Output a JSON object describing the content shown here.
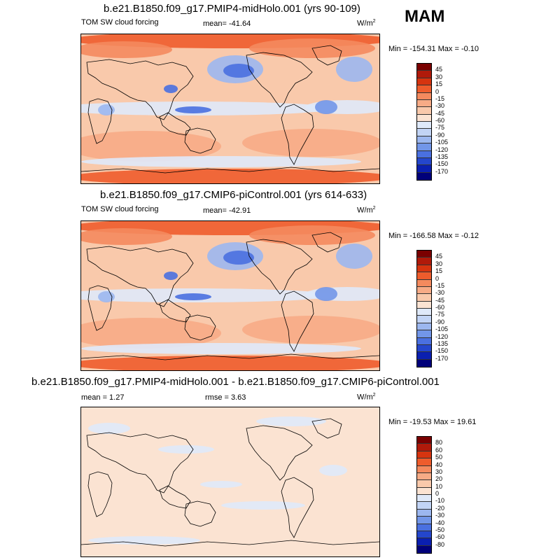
{
  "season": "MAM",
  "panels": [
    {
      "id": "top",
      "title": "b.e21.B1850.f09_g17.PMIP4-midHolo.001 (yrs 90-109)",
      "left_label": "TOM SW cloud forcing",
      "mean_text": "mean= -41.64",
      "units": "W/m",
      "units_sup": "2",
      "minmax_text": "Min = -154.31 Max =  -0.10",
      "colorbar_labels": [
        "45",
        "30",
        "15",
        "0",
        "-15",
        "-30",
        "-45",
        "-60",
        "-75",
        "-90",
        "-105",
        "-120",
        "-135",
        "-150",
        "-170"
      ],
      "colorbar_colors": [
        "#7a0000",
        "#b01a0a",
        "#d6340f",
        "#ee5c2c",
        "#f48a5e",
        "#f7ab86",
        "#f9c9ab",
        "#fbe3d2",
        "#dfe9f9",
        "#c2d4f5",
        "#9cb7ef",
        "#7296e8",
        "#4a70e0",
        "#2446cc",
        "#0a1fb0",
        "#00007a"
      ],
      "map_style": "field"
    },
    {
      "id": "middle",
      "title": "b.e21.B1850.f09_g17.CMIP6-piControl.001 (yrs 614-633)",
      "left_label": "TOM SW cloud forcing",
      "mean_text": "mean= -42.91",
      "units": "W/m",
      "units_sup": "2",
      "minmax_text": "Min = -166.58 Max =  -0.12",
      "colorbar_labels": [
        "45",
        "30",
        "15",
        "0",
        "-15",
        "-30",
        "-45",
        "-60",
        "-75",
        "-90",
        "-105",
        "-120",
        "-135",
        "-150",
        "-170"
      ],
      "colorbar_colors": [
        "#7a0000",
        "#b01a0a",
        "#d6340f",
        "#ee5c2c",
        "#f48a5e",
        "#f7ab86",
        "#f9c9ab",
        "#fbe3d2",
        "#dfe9f9",
        "#c2d4f5",
        "#9cb7ef",
        "#7296e8",
        "#4a70e0",
        "#2446cc",
        "#0a1fb0",
        "#00007a"
      ],
      "map_style": "field"
    },
    {
      "id": "bottom",
      "title": "b.e21.B1850.f09_g17.PMIP4-midHolo.001 - b.e21.B1850.f09_g17.CMIP6-piControl.001",
      "left_label": "mean =   1.27",
      "mean_text": "rmse =   3.63",
      "units": "W/m",
      "units_sup": "2",
      "minmax_text": "Min = -19.53 Max =  19.61",
      "colorbar_labels": [
        "80",
        "60",
        "50",
        "40",
        "30",
        "20",
        "10",
        "0",
        "-10",
        "-20",
        "-30",
        "-40",
        "-50",
        "-60",
        "-80"
      ],
      "colorbar_colors": [
        "#7a0000",
        "#b01a0a",
        "#d6340f",
        "#ee5c2c",
        "#f48a5e",
        "#f7ab86",
        "#f9c9ab",
        "#fbe3d2",
        "#dfe9f9",
        "#c2d4f5",
        "#9cb7ef",
        "#7296e8",
        "#4a70e0",
        "#2446cc",
        "#0a1fb0",
        "#00007a"
      ],
      "map_style": "diff"
    }
  ]
}
